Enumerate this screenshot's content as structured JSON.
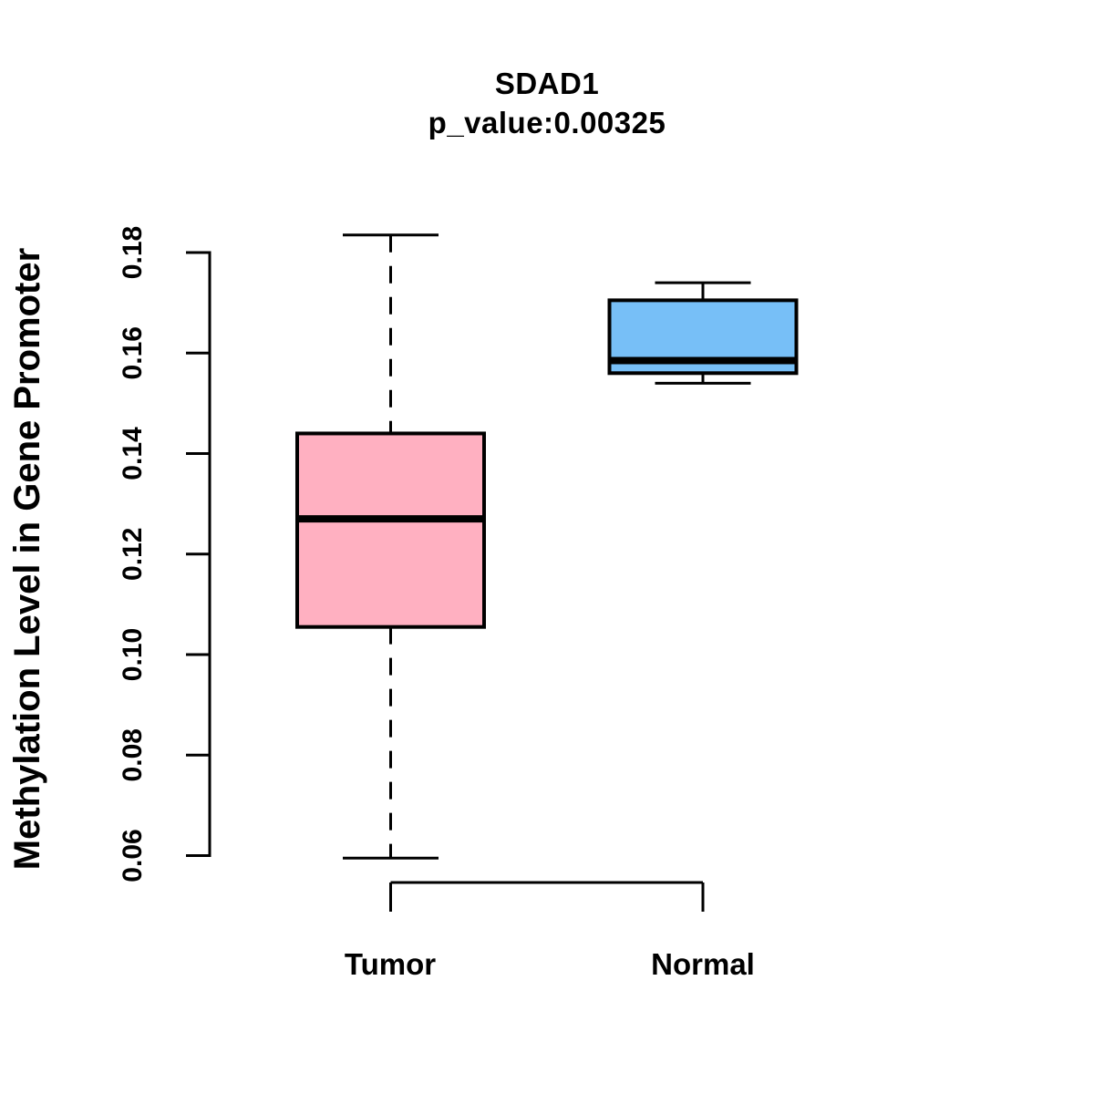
{
  "chart_data": {
    "type": "boxplot",
    "title": "SDAD1",
    "subtitle": "p_value:0.00325",
    "ylabel": "Methylation Level in Gene Promoter",
    "xlabel": "",
    "categories": [
      "Tumor",
      "Normal"
    ],
    "ylim": [
      0.06,
      0.18
    ],
    "yticks": [
      0.06,
      0.08,
      0.1,
      0.12,
      0.14,
      0.16,
      0.18
    ],
    "ytick_labels": [
      "0.06",
      "0.08",
      "0.10",
      "0.12",
      "0.14",
      "0.16",
      "0.18"
    ],
    "grid": false,
    "legend": "none",
    "series": [
      {
        "name": "Tumor",
        "whisker_low": 0.0595,
        "q1": 0.1055,
        "median": 0.127,
        "q3": 0.144,
        "whisker_high": 0.1835,
        "fill": "#FFB0C1",
        "whisker_style": "dashed"
      },
      {
        "name": "Normal",
        "whisker_low": 0.154,
        "q1": 0.156,
        "median": 0.1585,
        "q3": 0.1705,
        "whisker_high": 0.174,
        "fill": "#77BFF7",
        "whisker_style": "dashed"
      }
    ],
    "colors": {
      "tumor_fill": "#FFB0C1",
      "normal_fill": "#77BFF7",
      "line": "#000000",
      "background": "#FFFFFF"
    }
  }
}
